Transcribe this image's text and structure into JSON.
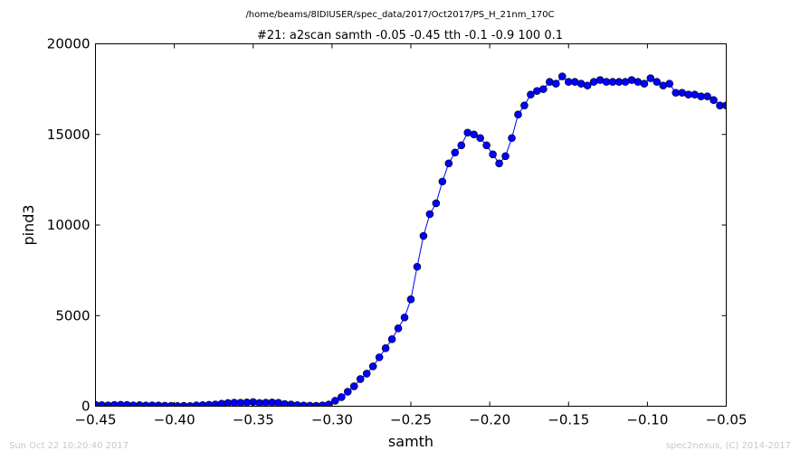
{
  "figure": {
    "suptitle": "/home/beams/8IDIUSER/spec_data/2017/Oct2017/PS_H_21nm_170C",
    "footer_left": "Sun Oct 22 10:20:40 2017",
    "footer_right": "spec2nexus, (C) 2014-2017"
  },
  "chart_data": {
    "type": "line",
    "title": "#21: a2scan  samth -0.05 -0.45  tth -0.1 -0.9  100 0.1",
    "xlabel": "samth",
    "ylabel": "pind3",
    "xlim": [
      -0.45,
      -0.05
    ],
    "ylim": [
      0,
      20000
    ],
    "xticks": [
      -0.45,
      -0.4,
      -0.35,
      -0.3,
      -0.25,
      -0.2,
      -0.15,
      -0.1,
      -0.05
    ],
    "xtick_labels": [
      "−0.45",
      "−0.40",
      "−0.35",
      "−0.30",
      "−0.25",
      "−0.20",
      "−0.15",
      "−0.10",
      "−0.05"
    ],
    "yticks": [
      0,
      5000,
      10000,
      15000,
      20000
    ],
    "ytick_labels": [
      "0",
      "5000",
      "10000",
      "15000",
      "20000"
    ],
    "grid": false,
    "series_color": "#0000ff",
    "marker": "circle",
    "series": [
      {
        "x": [
          -0.45,
          -0.446,
          -0.442,
          -0.438,
          -0.434,
          -0.43,
          -0.426,
          -0.422,
          -0.418,
          -0.414,
          -0.41,
          -0.406,
          -0.402,
          -0.398,
          -0.394,
          -0.39,
          -0.386,
          -0.382,
          -0.378,
          -0.374,
          -0.37,
          -0.366,
          -0.362,
          -0.358,
          -0.354,
          -0.35,
          -0.346,
          -0.342,
          -0.338,
          -0.334,
          -0.33,
          -0.326,
          -0.322,
          -0.318,
          -0.314,
          -0.31,
          -0.306,
          -0.302,
          -0.298,
          -0.294,
          -0.29,
          -0.286,
          -0.282,
          -0.278,
          -0.274,
          -0.27,
          -0.266,
          -0.262,
          -0.258,
          -0.254,
          -0.25,
          -0.246,
          -0.242,
          -0.238,
          -0.234,
          -0.23,
          -0.226,
          -0.222,
          -0.218,
          -0.214,
          -0.21,
          -0.206,
          -0.202,
          -0.198,
          -0.194,
          -0.19,
          -0.186,
          -0.182,
          -0.178,
          -0.174,
          -0.17,
          -0.166,
          -0.162,
          -0.158,
          -0.154,
          -0.15,
          -0.146,
          -0.142,
          -0.138,
          -0.134,
          -0.13,
          -0.126,
          -0.122,
          -0.118,
          -0.114,
          -0.11,
          -0.106,
          -0.102,
          -0.098,
          -0.094,
          -0.09,
          -0.086,
          -0.082,
          -0.078,
          -0.074,
          -0.07,
          -0.066,
          -0.062,
          -0.058,
          -0.054,
          -0.05
        ],
        "y": [
          80,
          60,
          50,
          70,
          80,
          70,
          50,
          60,
          40,
          50,
          40,
          30,
          20,
          10,
          20,
          10,
          50,
          60,
          80,
          100,
          140,
          180,
          200,
          190,
          210,
          230,
          180,
          200,
          210,
          190,
          120,
          100,
          60,
          40,
          30,
          20,
          50,
          100,
          300,
          500,
          800,
          1100,
          1500,
          1800,
          2200,
          2700,
          3200,
          3700,
          4300,
          4900,
          5900,
          7700,
          9400,
          10600,
          11200,
          12400,
          13400,
          14000,
          14400,
          15100,
          15000,
          14800,
          14400,
          13900,
          13400,
          13800,
          14800,
          16100,
          16600,
          17200,
          17400,
          17500,
          17900,
          17800,
          18200,
          17900,
          17900,
          17800,
          17700,
          17900,
          18000,
          17900,
          17900,
          17900,
          17900,
          18000,
          17900,
          17800,
          18100,
          17900,
          17700,
          17800,
          17300,
          17300,
          17200,
          17200,
          17100,
          17100,
          16900,
          16600,
          16600
        ]
      }
    ]
  }
}
